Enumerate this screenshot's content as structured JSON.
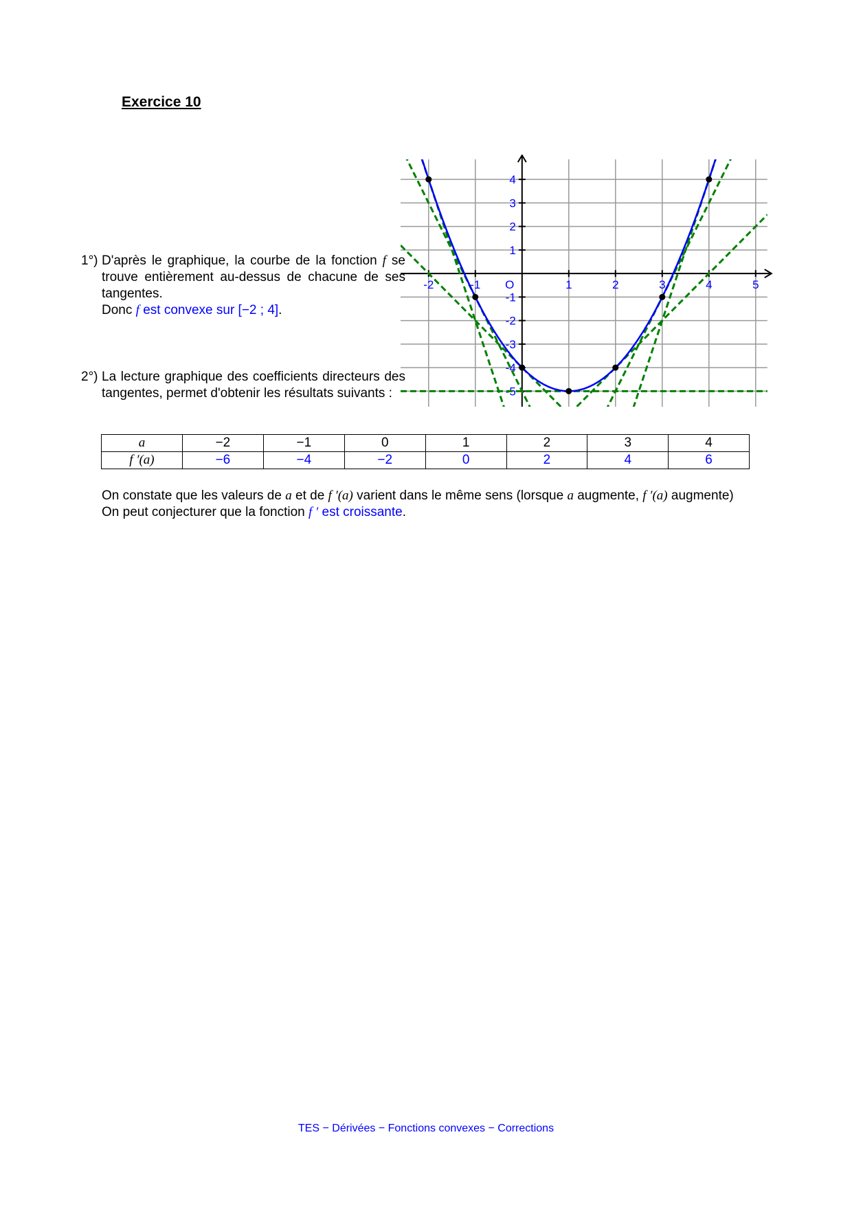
{
  "title": "Exercice 10",
  "q1": {
    "number": "1°)",
    "text": "D'après le graphique, la courbe de la fonction ",
    "f": "f",
    "text2": " se trouve entièrement au-dessus de chacune de ses tangentes.",
    "donc": "Donc ",
    "conclusion": " est convexe sur ",
    "interval": "[−2 ; 4]",
    "end": "."
  },
  "q2": {
    "number": "2°)",
    "text": "La lecture graphique des coefficients directeurs des tangentes, permet d'obtenir les résultats suivants :"
  },
  "table": {
    "row1_header": "a",
    "row2_header": "f ′(a)",
    "a": [
      "−2",
      "−1",
      "0",
      "1",
      "2",
      "3",
      "4"
    ],
    "fprime": [
      "−6",
      "−4",
      "−2",
      "0",
      "2",
      "4",
      "6"
    ]
  },
  "conclusion": {
    "p1a": "On constate que les valeurs de ",
    "a": "a",
    "p1b": " et de ",
    "fa": "f ′(a)",
    "p1c": " varient dans le même sens (lorsque ",
    "p1d": " augmente, ",
    "p1e": " augmente)",
    "p2a": "On peut conjecturer que la fonction ",
    "fp": "f ′",
    "p2b": " est croissante",
    "p2c": "."
  },
  "footer": "TES − Dérivées − Fonctions convexes − Corrections",
  "chart_data": {
    "type": "line",
    "title": "",
    "xlabel": "",
    "ylabel": "",
    "xlim": [
      -2.6,
      5.25
    ],
    "ylim": [
      -5.66,
      4.85
    ],
    "grid": true,
    "origin_label": "O",
    "x_ticks": [
      "-2",
      "-1",
      "1",
      "2",
      "3",
      "4",
      "5"
    ],
    "y_ticks": [
      "4",
      "3",
      "2",
      "1",
      "-1",
      "-2",
      "-3",
      "-4",
      "-5"
    ],
    "curve": {
      "x": [
        -2,
        -1,
        0,
        1,
        2,
        3,
        4
      ],
      "y": [
        4,
        -1,
        -4,
        -5,
        -4,
        -1,
        4
      ],
      "color": "#0000ff"
    },
    "tangent_points": [
      {
        "a": -2,
        "fa": 4,
        "slope": -6
      },
      {
        "a": -1,
        "fa": -1,
        "slope": -4
      },
      {
        "a": 0,
        "fa": -4,
        "slope": -2
      },
      {
        "a": 1,
        "fa": -5,
        "slope": 0
      },
      {
        "a": 2,
        "fa": -4,
        "slope": 2
      },
      {
        "a": 3,
        "fa": -1,
        "slope": 4
      },
      {
        "a": 4,
        "fa": 4,
        "slope": 6
      }
    ],
    "tangent_color": "#008000"
  }
}
